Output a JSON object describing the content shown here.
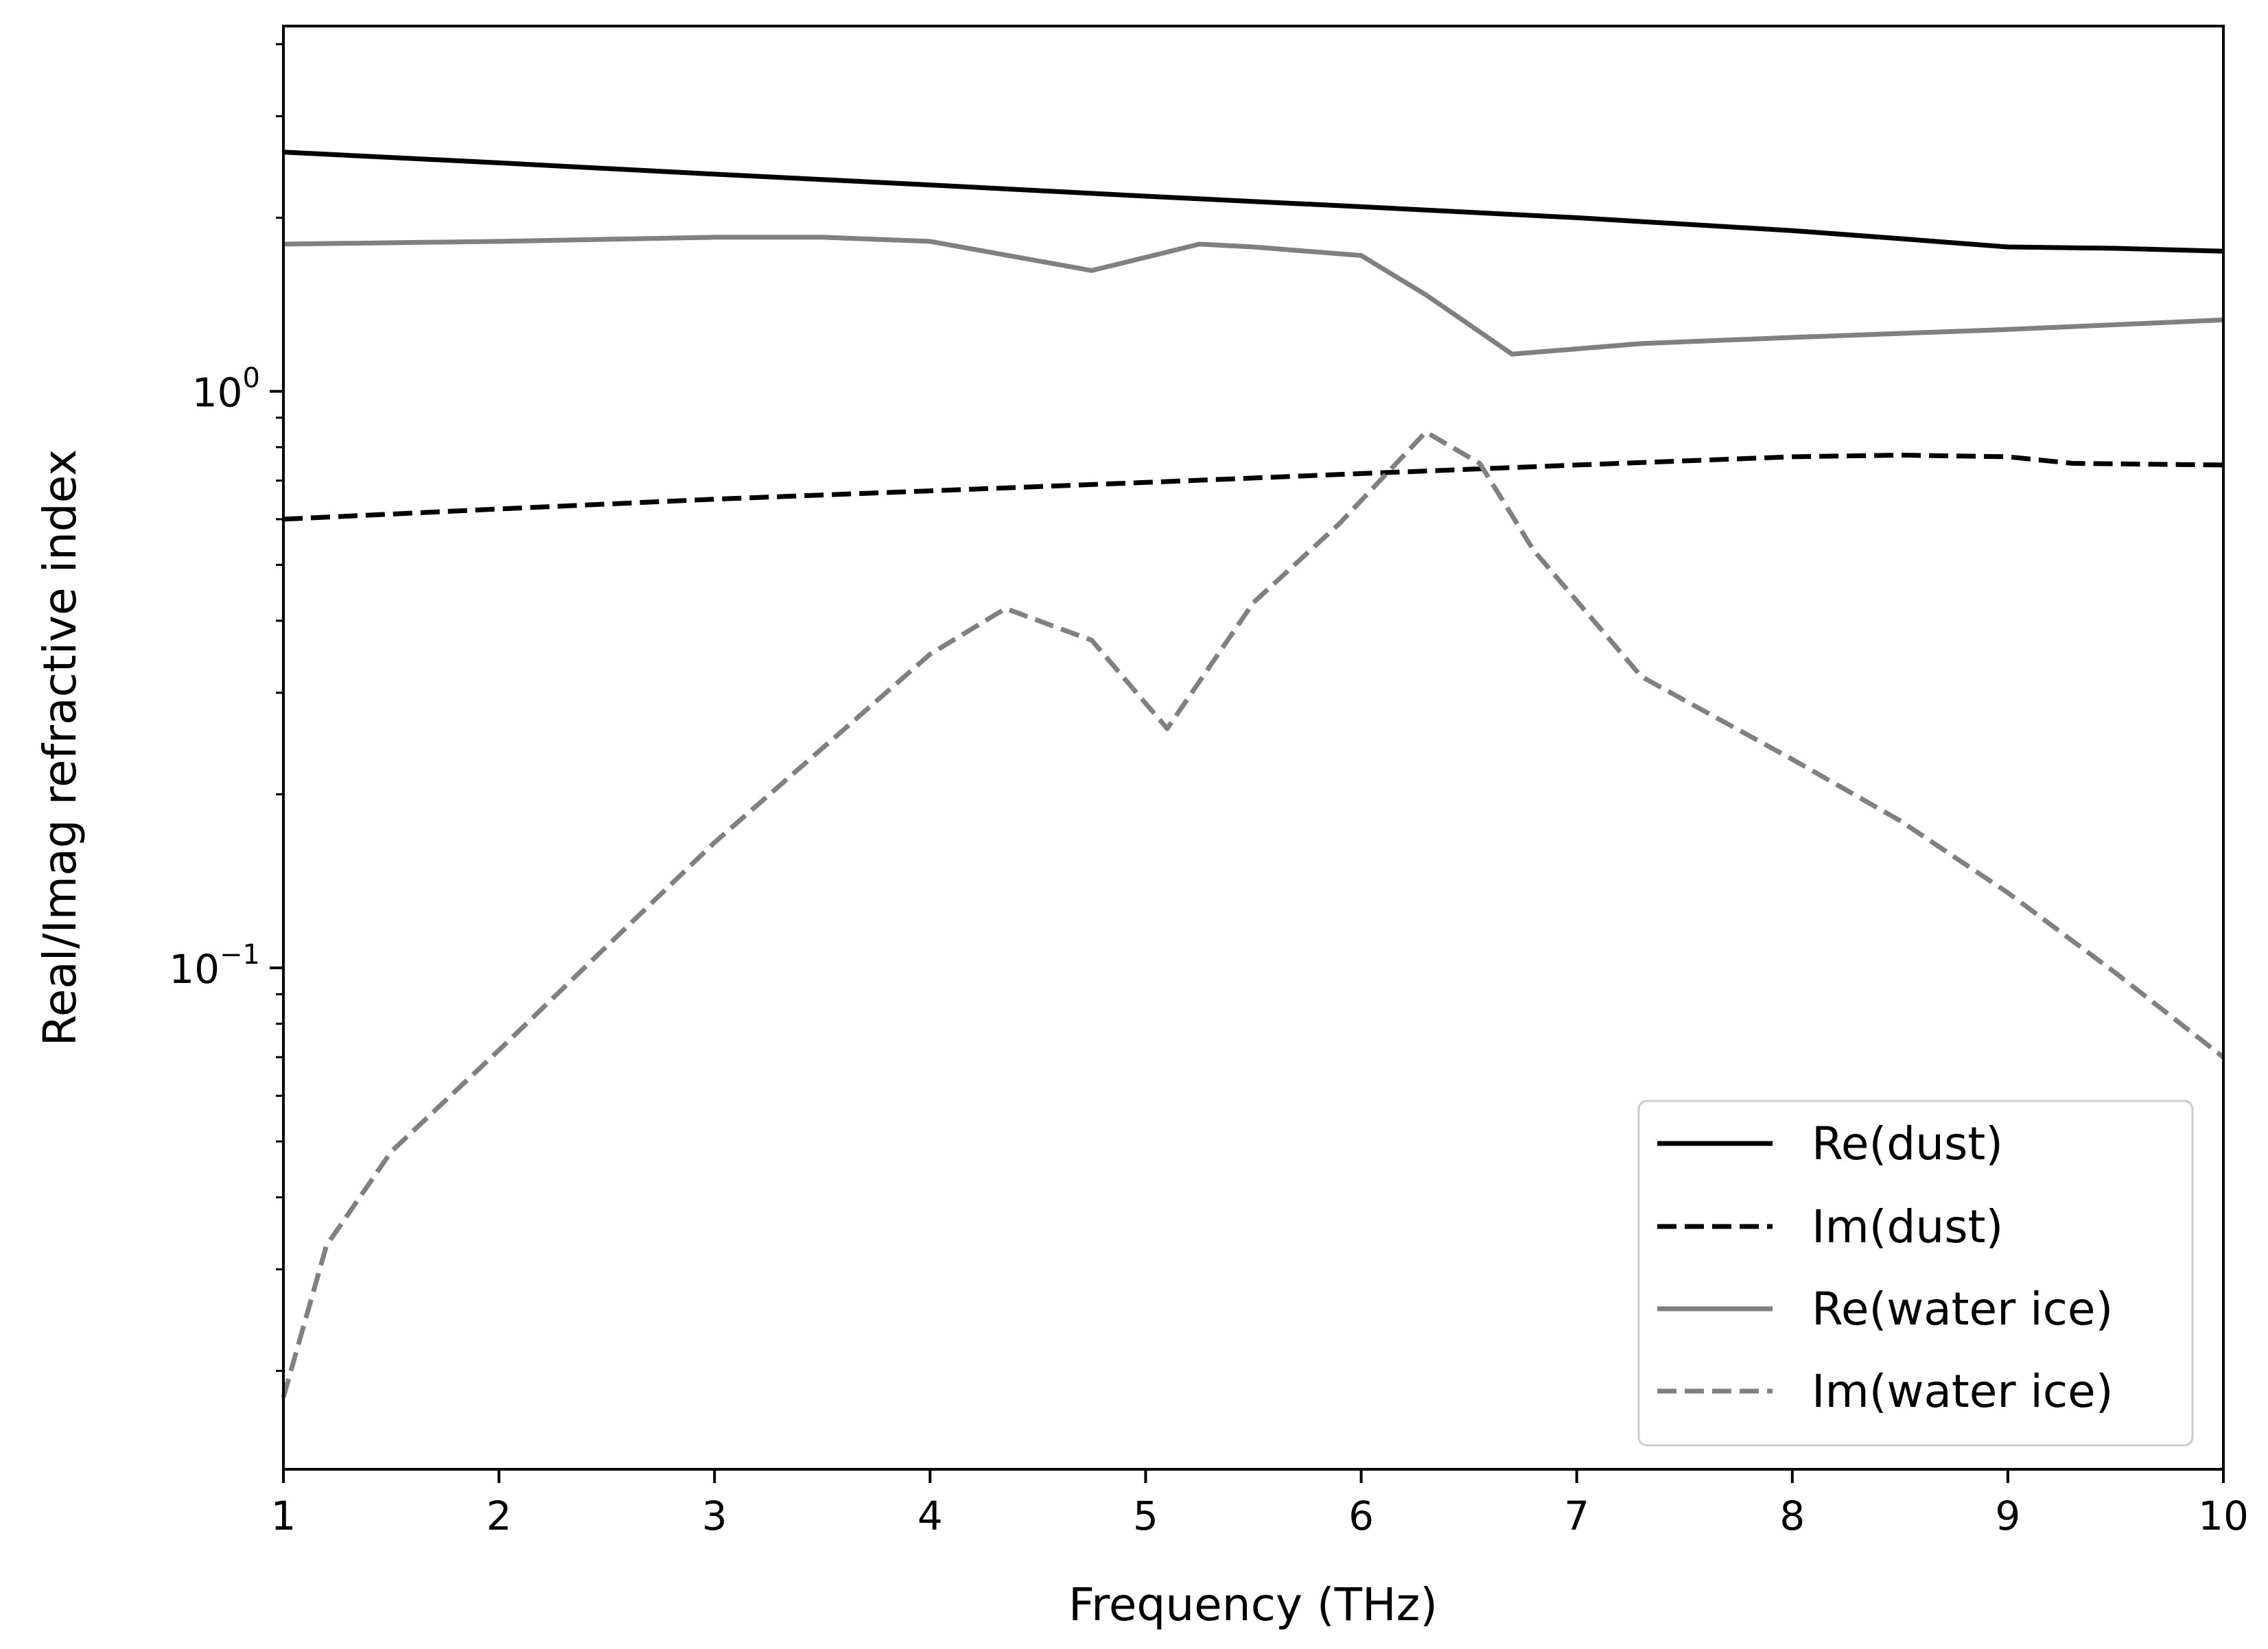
{
  "chart_data": {
    "type": "line",
    "title": "",
    "xlabel": "Frequency (THz)",
    "ylabel": "Real/Imag refractive index",
    "xlim": [
      1,
      10
    ],
    "ylim": [
      0.0135,
      4.3
    ],
    "yscale": "log",
    "grid": false,
    "legend_position": "lower-right",
    "x_ticks": [
      1,
      2,
      3,
      4,
      5,
      6,
      7,
      8,
      9,
      10
    ],
    "x_tick_labels": [
      "1",
      "2",
      "3",
      "4",
      "5",
      "6",
      "7",
      "8",
      "9",
      "10"
    ],
    "y_ticks": [
      {
        "value": 0.1,
        "base": "10",
        "exp": "−1"
      },
      {
        "value": 1,
        "base": "10",
        "exp": "0"
      }
    ],
    "y_minor_ticks": [
      0.02,
      0.03,
      0.04,
      0.05,
      0.06,
      0.07,
      0.08,
      0.09,
      0.2,
      0.3,
      0.4,
      0.5,
      0.6,
      0.7,
      0.8,
      0.9,
      2,
      3,
      4
    ],
    "series": [
      {
        "name": "Re(dust)",
        "color": "#000000",
        "dash": "solid",
        "x": [
          1,
          2,
          3,
          4,
          5,
          6,
          7,
          8,
          8.5,
          9,
          9.5,
          10
        ],
        "y": [
          2.6,
          2.49,
          2.38,
          2.28,
          2.18,
          2.09,
          2.0,
          1.9,
          1.84,
          1.78,
          1.77,
          1.75
        ]
      },
      {
        "name": "Im(dust)",
        "color": "#000000",
        "dash": "dashed",
        "x": [
          1,
          2,
          3,
          4,
          5,
          6,
          7,
          8,
          8.5,
          9,
          9.3,
          10
        ],
        "y": [
          0.6,
          0.625,
          0.65,
          0.672,
          0.695,
          0.72,
          0.745,
          0.77,
          0.775,
          0.77,
          0.75,
          0.745
        ]
      },
      {
        "name": "Re(water ice)",
        "color": "#808080",
        "dash": "solid",
        "x": [
          1,
          2,
          3,
          3.5,
          4,
          4.75,
          5.25,
          5.5,
          6,
          6.3,
          6.7,
          7.3,
          8,
          9,
          10
        ],
        "y": [
          1.8,
          1.82,
          1.85,
          1.85,
          1.82,
          1.62,
          1.8,
          1.78,
          1.72,
          1.47,
          1.16,
          1.21,
          1.24,
          1.28,
          1.33
        ]
      },
      {
        "name": "Im(water ice)",
        "color": "#808080",
        "dash": "dashed",
        "x": [
          1,
          1.2,
          1.5,
          2,
          3,
          4,
          4.35,
          4.75,
          5.1,
          5.5,
          5.9,
          6.3,
          6.55,
          6.8,
          7.3,
          8,
          8.5,
          9,
          9.5,
          10
        ],
        "y": [
          0.018,
          0.033,
          0.048,
          0.072,
          0.165,
          0.35,
          0.42,
          0.37,
          0.26,
          0.43,
          0.59,
          0.85,
          0.75,
          0.53,
          0.32,
          0.23,
          0.18,
          0.135,
          0.098,
          0.07
        ]
      }
    ]
  }
}
